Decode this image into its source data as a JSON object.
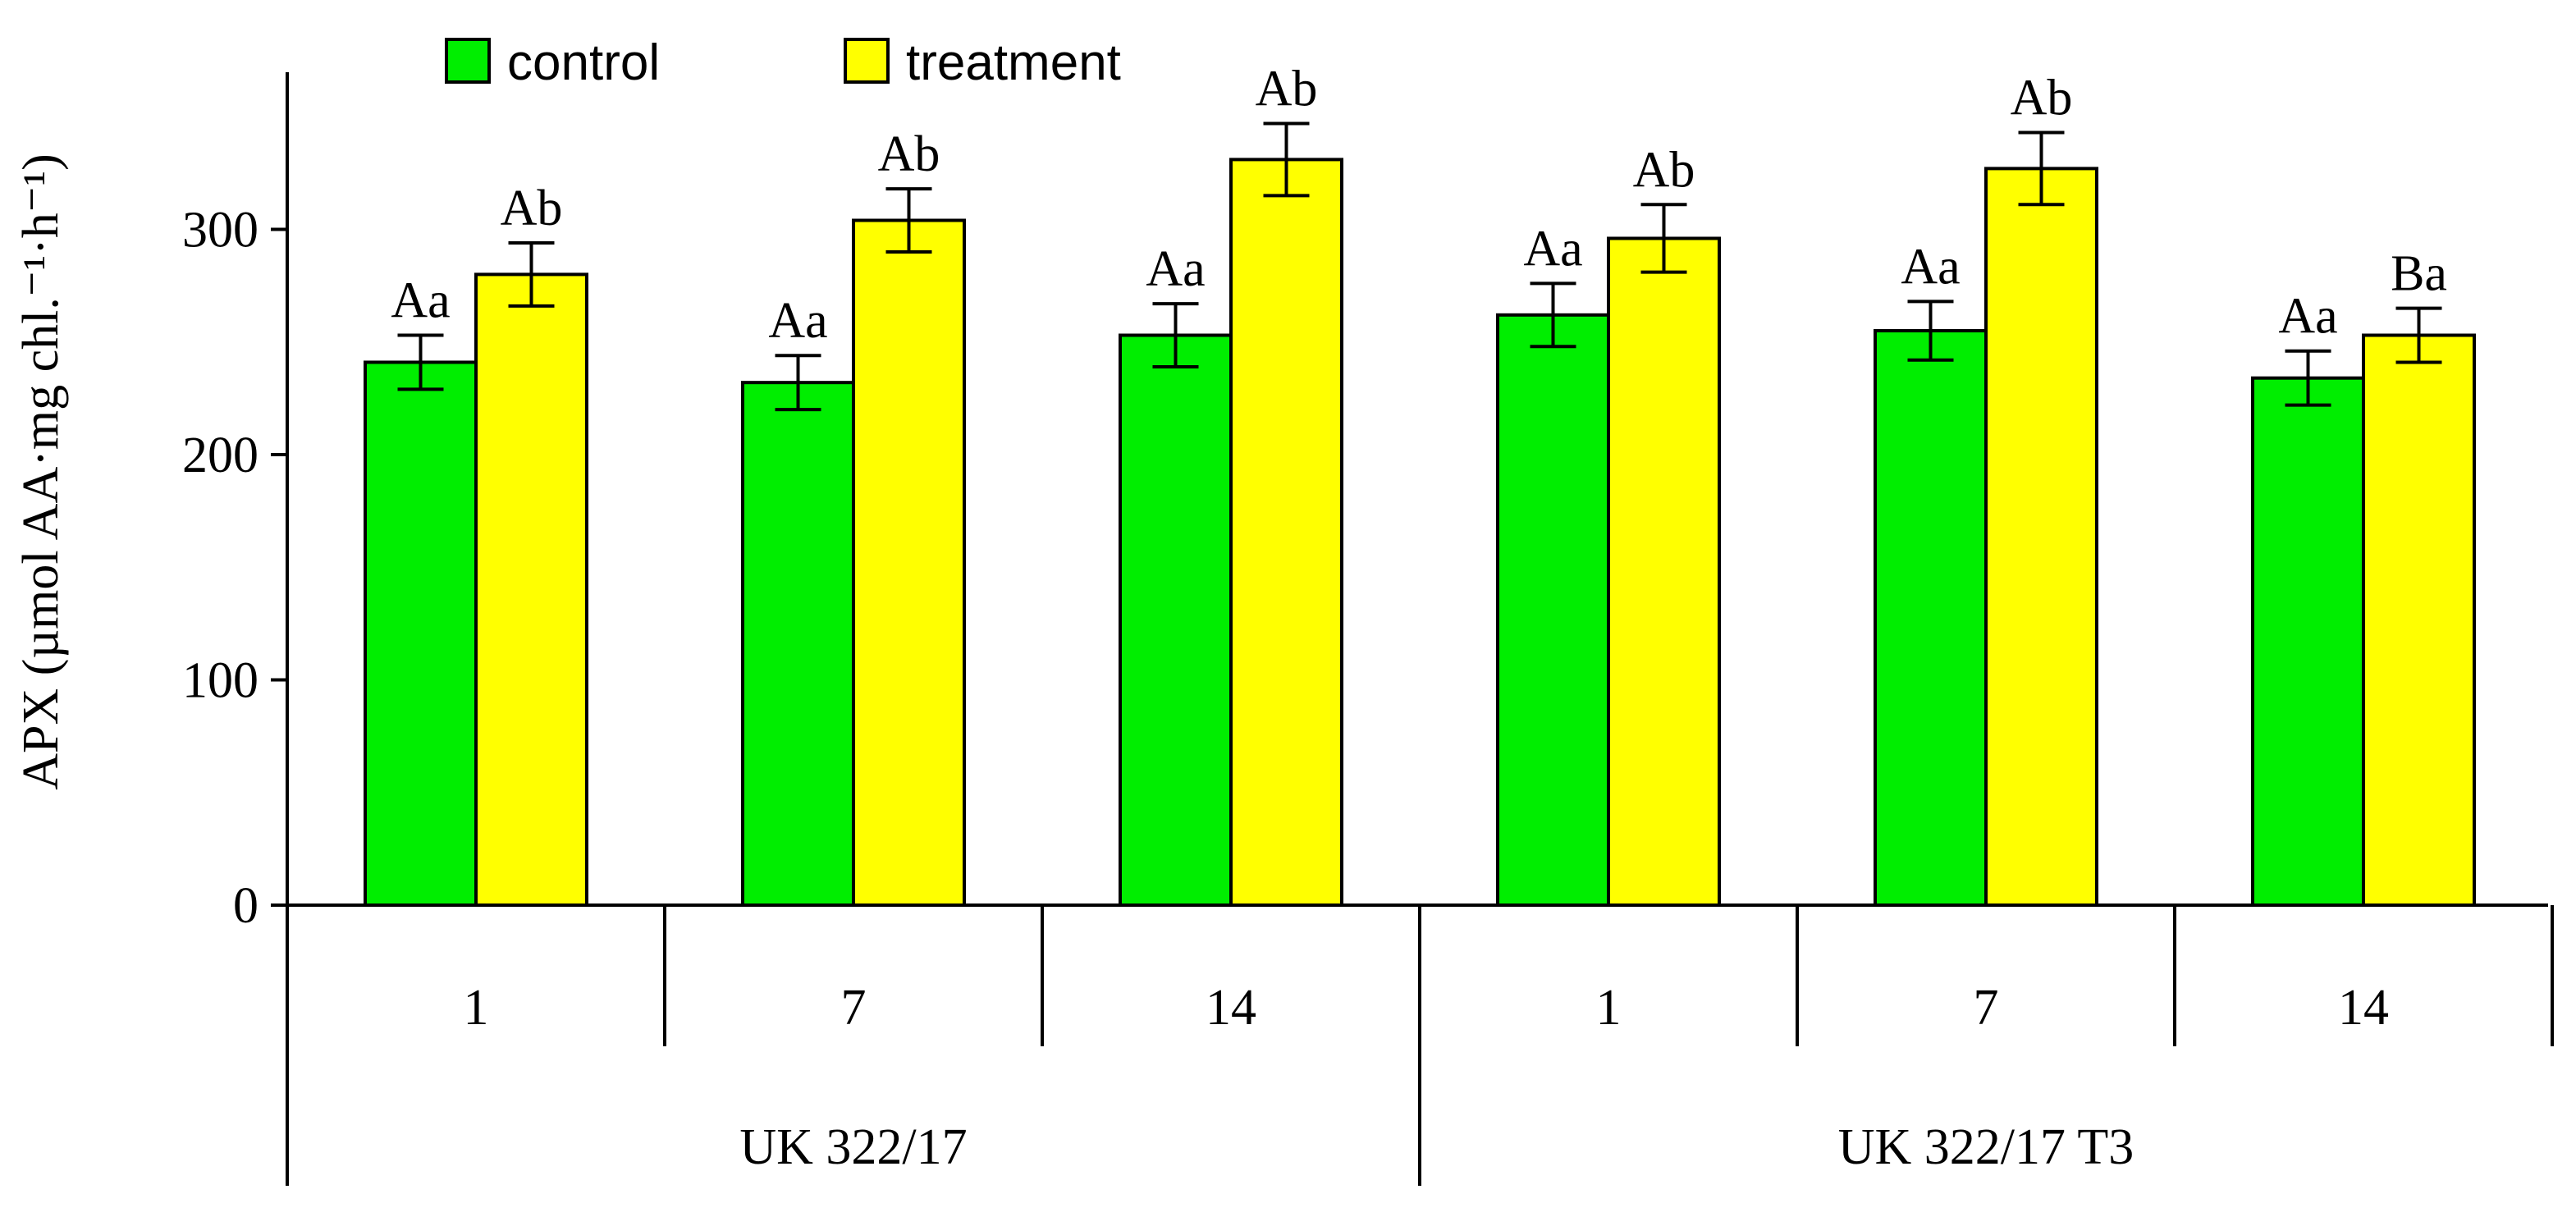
{
  "chart_data": {
    "type": "bar",
    "ylabel": "APX (µmol AA·mg chl.⁻¹·h⁻¹)",
    "ylim": [
      0,
      370
    ],
    "yticks": [
      0,
      100,
      200,
      300
    ],
    "groups": [
      {
        "name": "UK 322/17",
        "categories": [
          "1",
          "7",
          "14"
        ]
      },
      {
        "name": "UK 322/17 T3",
        "categories": [
          "1",
          "7",
          "14"
        ]
      }
    ],
    "categories": [
      "1",
      "7",
      "14",
      "1",
      "7",
      "14"
    ],
    "series": [
      {
        "name": "control",
        "color": "#00ee00",
        "values": [
          241,
          232,
          253,
          262,
          255,
          234
        ],
        "errors": [
          12,
          12,
          14,
          14,
          13,
          12
        ],
        "labels": [
          "Aa",
          "Aa",
          "Aa",
          "Aa",
          "Aa",
          "Aa"
        ]
      },
      {
        "name": "treatment",
        "color": "#ffff00",
        "values": [
          280,
          304,
          331,
          296,
          327,
          253
        ],
        "errors": [
          14,
          14,
          16,
          15,
          16,
          12
        ],
        "labels": [
          "Ab",
          "Ab",
          "Ab",
          "Ab",
          "Ab",
          "Ba"
        ]
      }
    ],
    "legend_position": "top-left",
    "grid": false
  }
}
